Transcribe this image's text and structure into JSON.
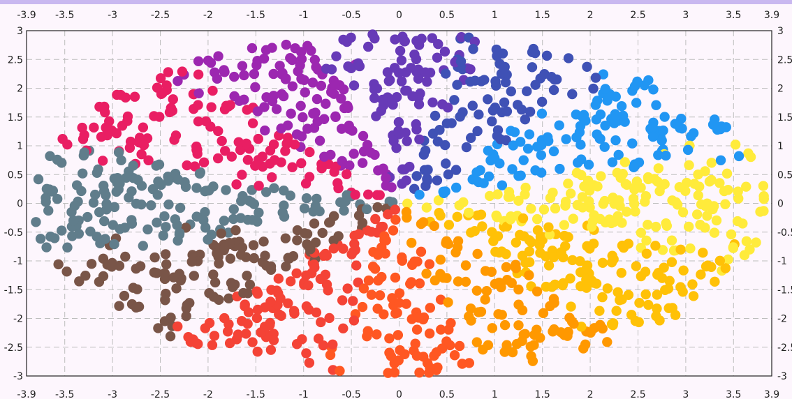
{
  "colors": {
    "background": "#fdf6fd",
    "grid": "#bdbdbd",
    "frame": "#222222",
    "bands": [
      "#607d8b",
      "#795548",
      "#f44336",
      "#ff5722",
      "#ff9800",
      "#ffc107",
      "#ffeb3b",
      "#2196f3",
      "#3f51b5",
      "#673ab7",
      "#9c27b0",
      "#e91e63"
    ]
  },
  "chart_data": {
    "type": "scatter",
    "title": "",
    "xlabel": "",
    "ylabel": "",
    "xlim": [
      -3.9,
      3.9
    ],
    "ylim": [
      -3,
      3
    ],
    "grid": true,
    "legend": "none",
    "x_ticks": [
      "-3.9",
      "-3.5",
      "-3",
      "-2.5",
      "-2",
      "-1.5",
      "-1",
      "-0.5",
      "0",
      "0.5",
      "1",
      "1.5",
      "2",
      "2.5",
      "3",
      "3.5",
      "3.9"
    ],
    "y_ticks": [
      "-3",
      "-2.5",
      "-2",
      "-1.5",
      "-1",
      "-0.5",
      "0",
      "0.5",
      "1",
      "1.5",
      "2",
      "2.5",
      "3"
    ],
    "point_count": 1400,
    "point_region": "ellipse centered at (0,0), semi-axes 3.9 (x) and 3 (y)",
    "point_coloring": "color bands follow the angle around the origin in 12 repeating steps"
  }
}
